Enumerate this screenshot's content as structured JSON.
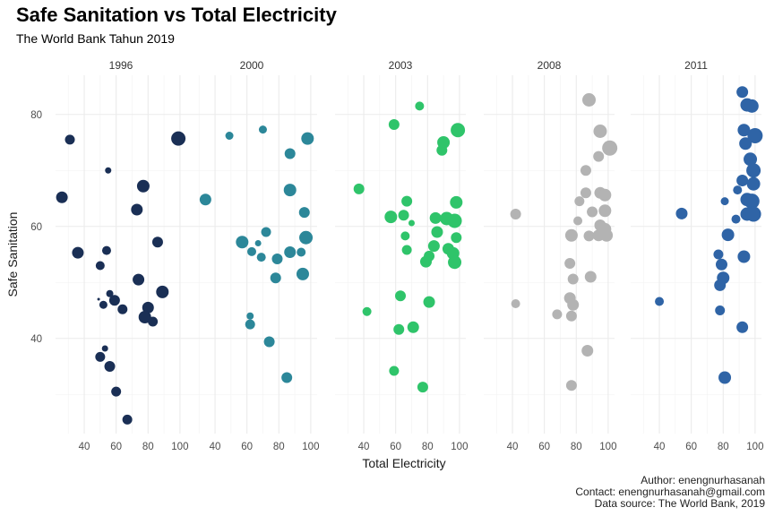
{
  "title": "Safe Sanitation vs Total Electricity",
  "subtitle": "The World Bank Tahun 2019",
  "caption": {
    "author": "Author: enengnurhasanah",
    "contact": "Contact: enengnurhasanah@gmail.com",
    "source": "Data source: The World Bank, 2019"
  },
  "chart_data": {
    "type": "scatter",
    "xlabel": "Total Electricity",
    "ylabel": "Safe Sanitation",
    "xlim": [
      22,
      104
    ],
    "ylim": [
      23,
      87
    ],
    "x_ticks": [
      "40",
      "60",
      "80",
      "100"
    ],
    "y_ticks": [
      "40",
      "60",
      "80"
    ],
    "grid": true,
    "facets": [
      {
        "label": "1996",
        "color": "#1a2f55",
        "points": [
          {
            "x": 31,
            "y": 75.5,
            "size": 5.5
          },
          {
            "x": 26,
            "y": 65.2,
            "size": 6.5
          },
          {
            "x": 55,
            "y": 70,
            "size": 3.5
          },
          {
            "x": 99,
            "y": 75.7,
            "size": 8
          },
          {
            "x": 77,
            "y": 67.2,
            "size": 7
          },
          {
            "x": 73,
            "y": 63,
            "size": 6.5
          },
          {
            "x": 36,
            "y": 55.3,
            "size": 6.5
          },
          {
            "x": 54,
            "y": 55.7,
            "size": 5
          },
          {
            "x": 86,
            "y": 57.2,
            "size": 6
          },
          {
            "x": 50,
            "y": 53,
            "size": 5
          },
          {
            "x": 74,
            "y": 50.5,
            "size": 6.5
          },
          {
            "x": 89,
            "y": 48.3,
            "size": 7
          },
          {
            "x": 56,
            "y": 48,
            "size": 4
          },
          {
            "x": 59,
            "y": 46.8,
            "size": 6
          },
          {
            "x": 49,
            "y": 47,
            "size": 1.5
          },
          {
            "x": 52,
            "y": 46,
            "size": 4.5
          },
          {
            "x": 64,
            "y": 45.2,
            "size": 5.5
          },
          {
            "x": 80,
            "y": 45.5,
            "size": 6.5
          },
          {
            "x": 78,
            "y": 43.8,
            "size": 7
          },
          {
            "x": 83,
            "y": 43,
            "size": 5.5
          },
          {
            "x": 53,
            "y": 38.2,
            "size": 3.5
          },
          {
            "x": 50,
            "y": 36.7,
            "size": 5.5
          },
          {
            "x": 56,
            "y": 35,
            "size": 6
          },
          {
            "x": 60,
            "y": 30.5,
            "size": 5.5
          },
          {
            "x": 67,
            "y": 25.5,
            "size": 5.5
          }
        ]
      },
      {
        "label": "2000",
        "color": "#2c8799",
        "points": [
          {
            "x": 49,
            "y": 76.2,
            "size": 4.5
          },
          {
            "x": 70,
            "y": 77.3,
            "size": 4.5
          },
          {
            "x": 98,
            "y": 75.7,
            "size": 7
          },
          {
            "x": 87,
            "y": 73,
            "size": 6
          },
          {
            "x": 34,
            "y": 64.8,
            "size": 6.5
          },
          {
            "x": 87,
            "y": 66.5,
            "size": 7
          },
          {
            "x": 96,
            "y": 62.5,
            "size": 6
          },
          {
            "x": 72,
            "y": 59,
            "size": 5.5
          },
          {
            "x": 57,
            "y": 57.2,
            "size": 7
          },
          {
            "x": 67,
            "y": 57,
            "size": 3.5
          },
          {
            "x": 97,
            "y": 58,
            "size": 7.5
          },
          {
            "x": 63,
            "y": 55.5,
            "size": 5
          },
          {
            "x": 69,
            "y": 54.5,
            "size": 5
          },
          {
            "x": 79,
            "y": 54.2,
            "size": 6
          },
          {
            "x": 87,
            "y": 55.4,
            "size": 6.5
          },
          {
            "x": 94,
            "y": 55.4,
            "size": 5
          },
          {
            "x": 95,
            "y": 51.5,
            "size": 7
          },
          {
            "x": 78,
            "y": 50.8,
            "size": 6
          },
          {
            "x": 62,
            "y": 44,
            "size": 4
          },
          {
            "x": 62,
            "y": 42.5,
            "size": 5.5
          },
          {
            "x": 74,
            "y": 39.4,
            "size": 6
          },
          {
            "x": 85,
            "y": 33,
            "size": 6
          }
        ]
      },
      {
        "label": "2003",
        "color": "#2fc46a",
        "points": [
          {
            "x": 59,
            "y": 78.2,
            "size": 6
          },
          {
            "x": 75,
            "y": 81.5,
            "size": 5
          },
          {
            "x": 99,
            "y": 77.2,
            "size": 8
          },
          {
            "x": 90,
            "y": 75,
            "size": 7
          },
          {
            "x": 89,
            "y": 73.6,
            "size": 6
          },
          {
            "x": 37,
            "y": 66.7,
            "size": 6
          },
          {
            "x": 67,
            "y": 64.5,
            "size": 6
          },
          {
            "x": 70,
            "y": 60.6,
            "size": 3.5
          },
          {
            "x": 98,
            "y": 64.3,
            "size": 7
          },
          {
            "x": 57,
            "y": 61.7,
            "size": 7
          },
          {
            "x": 65,
            "y": 62,
            "size": 6
          },
          {
            "x": 85,
            "y": 61.5,
            "size": 6.5
          },
          {
            "x": 92,
            "y": 61.4,
            "size": 7.5
          },
          {
            "x": 97,
            "y": 61,
            "size": 8
          },
          {
            "x": 66,
            "y": 58.3,
            "size": 5
          },
          {
            "x": 86,
            "y": 59,
            "size": 6.5
          },
          {
            "x": 98,
            "y": 58,
            "size": 6
          },
          {
            "x": 67,
            "y": 55.8,
            "size": 5.5
          },
          {
            "x": 84,
            "y": 56.5,
            "size": 6.5
          },
          {
            "x": 93,
            "y": 56,
            "size": 6.5
          },
          {
            "x": 96,
            "y": 55.2,
            "size": 7
          },
          {
            "x": 81,
            "y": 54.7,
            "size": 6
          },
          {
            "x": 79,
            "y": 53.7,
            "size": 6.5
          },
          {
            "x": 97,
            "y": 53.6,
            "size": 7.5
          },
          {
            "x": 63,
            "y": 47.6,
            "size": 6
          },
          {
            "x": 81,
            "y": 46.5,
            "size": 6.5
          },
          {
            "x": 42,
            "y": 44.8,
            "size": 5
          },
          {
            "x": 62,
            "y": 41.6,
            "size": 6
          },
          {
            "x": 71,
            "y": 42,
            "size": 6.5
          },
          {
            "x": 59,
            "y": 34.2,
            "size": 5.5
          },
          {
            "x": 77,
            "y": 31.3,
            "size": 6
          }
        ]
      },
      {
        "label": "2008",
        "color": "#b3b3b3",
        "points": [
          {
            "x": 88,
            "y": 82.6,
            "size": 7.5
          },
          {
            "x": 95,
            "y": 77,
            "size": 7.5
          },
          {
            "x": 101,
            "y": 74,
            "size": 8.5
          },
          {
            "x": 94,
            "y": 72.5,
            "size": 6
          },
          {
            "x": 86,
            "y": 70,
            "size": 6
          },
          {
            "x": 86,
            "y": 66,
            "size": 6
          },
          {
            "x": 95,
            "y": 66,
            "size": 6.5
          },
          {
            "x": 98,
            "y": 65.6,
            "size": 7
          },
          {
            "x": 82,
            "y": 64.5,
            "size": 5.5
          },
          {
            "x": 42,
            "y": 62.2,
            "size": 6
          },
          {
            "x": 90,
            "y": 62.6,
            "size": 6
          },
          {
            "x": 98,
            "y": 62.8,
            "size": 7
          },
          {
            "x": 81,
            "y": 61,
            "size": 5
          },
          {
            "x": 95,
            "y": 60.2,
            "size": 6.5
          },
          {
            "x": 98,
            "y": 59.5,
            "size": 7
          },
          {
            "x": 77,
            "y": 58.4,
            "size": 7
          },
          {
            "x": 88,
            "y": 58.3,
            "size": 6
          },
          {
            "x": 94,
            "y": 58.4,
            "size": 6.5
          },
          {
            "x": 99,
            "y": 58.4,
            "size": 7
          },
          {
            "x": 76,
            "y": 53.4,
            "size": 6
          },
          {
            "x": 78,
            "y": 50.6,
            "size": 6
          },
          {
            "x": 89,
            "y": 51,
            "size": 6.5
          },
          {
            "x": 76,
            "y": 47.2,
            "size": 6.5
          },
          {
            "x": 78,
            "y": 46,
            "size": 6.5
          },
          {
            "x": 42,
            "y": 46.2,
            "size": 5
          },
          {
            "x": 68,
            "y": 44.3,
            "size": 5.5
          },
          {
            "x": 77,
            "y": 44,
            "size": 6
          },
          {
            "x": 87,
            "y": 37.8,
            "size": 6.5
          },
          {
            "x": 77,
            "y": 31.6,
            "size": 6
          }
        ]
      },
      {
        "label": "2011",
        "color": "#2f64a6",
        "points": [
          {
            "x": 92,
            "y": 84,
            "size": 6.5
          },
          {
            "x": 95,
            "y": 81.7,
            "size": 7.5
          },
          {
            "x": 98,
            "y": 81.5,
            "size": 7.5
          },
          {
            "x": 93,
            "y": 77.2,
            "size": 7
          },
          {
            "x": 100,
            "y": 76.2,
            "size": 8.5
          },
          {
            "x": 94,
            "y": 74.8,
            "size": 7
          },
          {
            "x": 97,
            "y": 72,
            "size": 7.5
          },
          {
            "x": 99,
            "y": 70,
            "size": 8
          },
          {
            "x": 99,
            "y": 67.6,
            "size": 7.5
          },
          {
            "x": 92,
            "y": 68.2,
            "size": 6.5
          },
          {
            "x": 89,
            "y": 66.5,
            "size": 5
          },
          {
            "x": 95,
            "y": 64.8,
            "size": 7.5
          },
          {
            "x": 98,
            "y": 64.5,
            "size": 8.5
          },
          {
            "x": 81,
            "y": 64.5,
            "size": 4.5
          },
          {
            "x": 95,
            "y": 62.2,
            "size": 7.5
          },
          {
            "x": 99,
            "y": 62.2,
            "size": 8.5
          },
          {
            "x": 54,
            "y": 62.3,
            "size": 6.5
          },
          {
            "x": 83,
            "y": 58.5,
            "size": 7
          },
          {
            "x": 88,
            "y": 61.3,
            "size": 5
          },
          {
            "x": 77,
            "y": 55,
            "size": 5.5
          },
          {
            "x": 93,
            "y": 54.6,
            "size": 7
          },
          {
            "x": 79,
            "y": 53.2,
            "size": 6.5
          },
          {
            "x": 80,
            "y": 50.8,
            "size": 7
          },
          {
            "x": 78,
            "y": 49.5,
            "size": 6.5
          },
          {
            "x": 40,
            "y": 46.6,
            "size": 5
          },
          {
            "x": 78,
            "y": 45,
            "size": 5.5
          },
          {
            "x": 92,
            "y": 42,
            "size": 6.5
          },
          {
            "x": 81,
            "y": 33,
            "size": 7
          }
        ]
      }
    ]
  }
}
